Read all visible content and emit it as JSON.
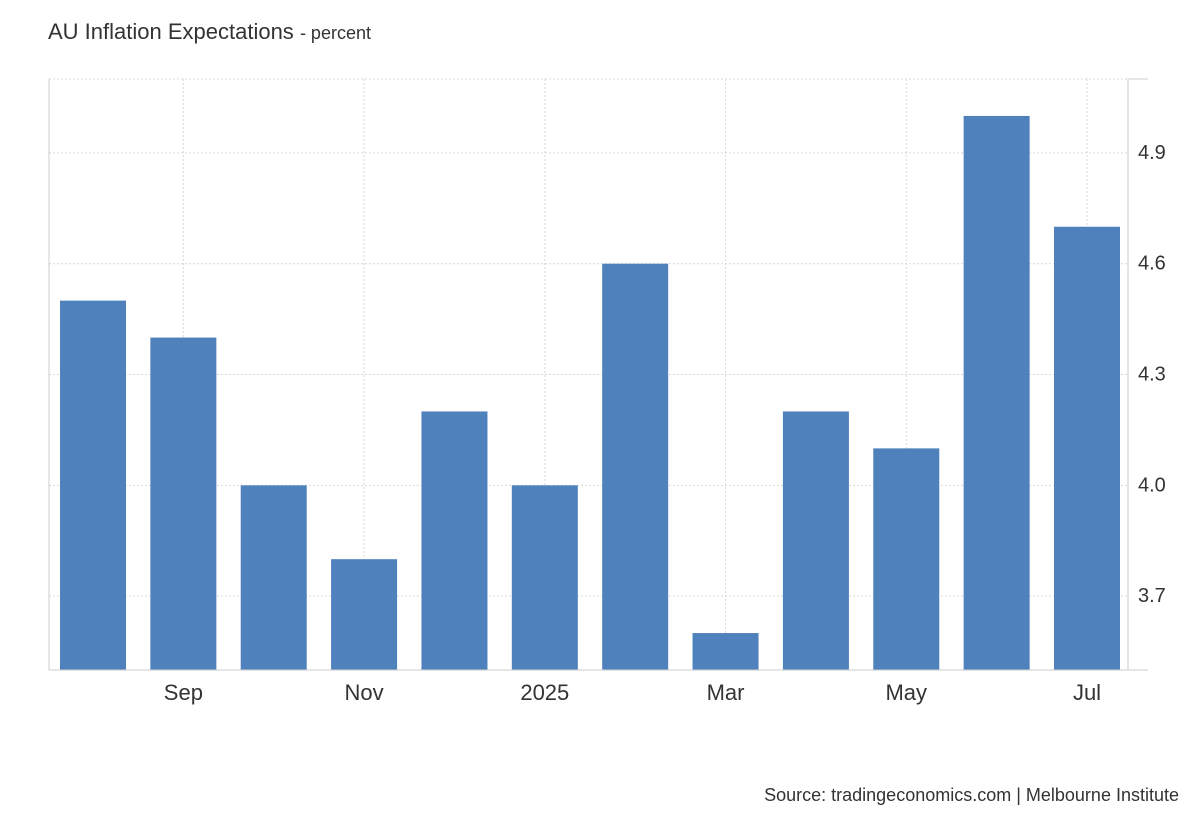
{
  "title": "AU Inflation Expectations",
  "title_unit": "- percent",
  "source": "Source: tradingeconomics.com | Melbourne Institute",
  "colors": {
    "bar": "#4f81bd",
    "grid": "#d9d9d9",
    "axis": "#cccccc"
  },
  "chart_data": {
    "type": "bar",
    "categories": [
      "2024-08",
      "2024-09",
      "2024-10",
      "2024-11",
      "2024-12",
      "2025-01",
      "2025-02",
      "2025-03",
      "2025-04",
      "2025-05",
      "2025-06",
      "2025-07"
    ],
    "values": [
      4.5,
      4.4,
      4.0,
      3.8,
      4.2,
      4.0,
      4.6,
      3.6,
      4.2,
      4.1,
      5.0,
      4.7
    ],
    "x_tick_labels": [
      {
        "label": "Sep",
        "category": "2024-09"
      },
      {
        "label": "Nov",
        "category": "2024-11"
      },
      {
        "label": "2025",
        "category": "2025-01"
      },
      {
        "label": "Mar",
        "category": "2025-03"
      },
      {
        "label": "May",
        "category": "2025-05"
      },
      {
        "label": "Jul",
        "category": "2025-07"
      }
    ],
    "y_ticks": [
      "3.7",
      "4.0",
      "4.3",
      "4.6",
      "4.9"
    ],
    "ylim": [
      3.5,
      5.1
    ],
    "y_axis_side": "right",
    "grid": true
  }
}
